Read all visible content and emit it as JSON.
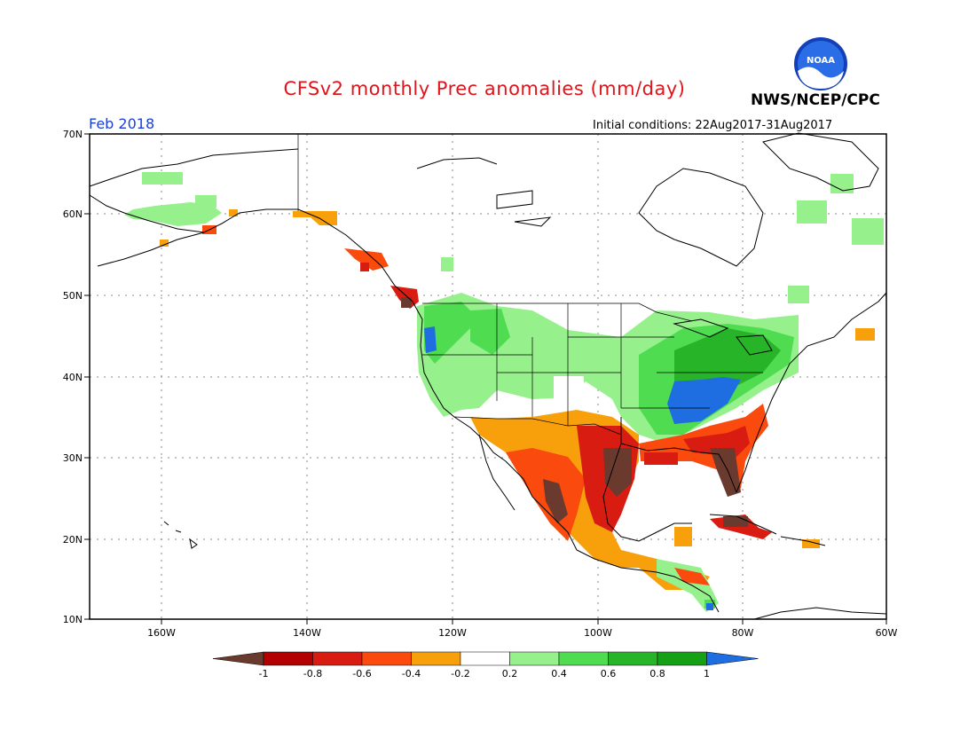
{
  "title": "CFSv2 monthly Prec anomalies (mm/day)",
  "agency": "NWS/NCEP/CPC",
  "logo_text": "NOAA",
  "target_month": "Feb 2018",
  "initial_conditions": "Initial conditions: 22Aug2017-31Aug2017",
  "map": {
    "lat_labels": [
      "70N",
      "60N",
      "50N",
      "40N",
      "30N",
      "20N",
      "10N"
    ],
    "lon_labels": [
      "160W",
      "140W",
      "120W",
      "100W",
      "80W",
      "60W"
    ],
    "lat_range": [
      10,
      70
    ],
    "lon_range": [
      -170,
      -60
    ]
  },
  "legend": {
    "ticks": [
      "-1",
      "-0.8",
      "-0.6",
      "-0.4",
      "-0.2",
      "0.2",
      "0.4",
      "0.6",
      "0.8",
      "1"
    ],
    "colors": [
      "#6b3a2e",
      "#b30000",
      "#d91c12",
      "#fa4a0e",
      "#f8a00c",
      "#ffffff",
      "#96f08c",
      "#50dc50",
      "#28b428",
      "#15a015",
      "#1e6ee1"
    ]
  }
}
